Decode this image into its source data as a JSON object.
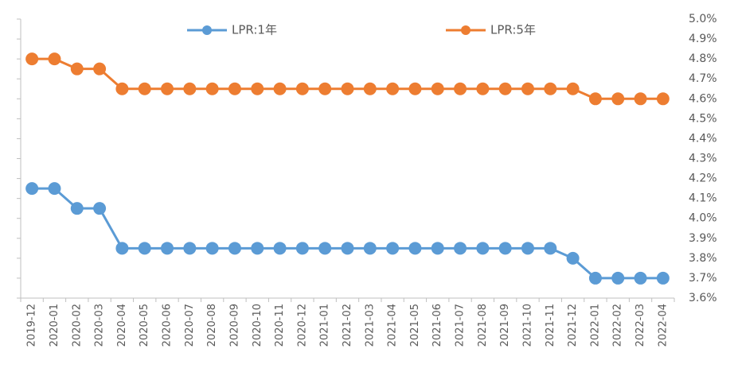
{
  "chart_data": {
    "type": "line",
    "categories": [
      "2019-12",
      "2020-01",
      "2020-02",
      "2020-03",
      "2020-04",
      "2020-05",
      "2020-06",
      "2020-07",
      "2020-08",
      "2020-09",
      "2020-10",
      "2020-11",
      "2020-12",
      "2021-01",
      "2021-02",
      "2021-03",
      "2021-04",
      "2021-05",
      "2021-06",
      "2021-07",
      "2021-08",
      "2021-09",
      "2021-10",
      "2021-11",
      "2021-12",
      "2022-01",
      "2022-02",
      "2022-03",
      "2022-04"
    ],
    "series": [
      {
        "name": "LPR:1年",
        "color": "#5b9bd5",
        "values": [
          4.15,
          4.15,
          4.05,
          4.05,
          3.85,
          3.85,
          3.85,
          3.85,
          3.85,
          3.85,
          3.85,
          3.85,
          3.85,
          3.85,
          3.85,
          3.85,
          3.85,
          3.85,
          3.85,
          3.85,
          3.85,
          3.85,
          3.85,
          3.85,
          3.8,
          3.7,
          3.7,
          3.7,
          3.7
        ]
      },
      {
        "name": "LPR:5年",
        "color": "#ed7d31",
        "values": [
          4.8,
          4.8,
          4.75,
          4.75,
          4.65,
          4.65,
          4.65,
          4.65,
          4.65,
          4.65,
          4.65,
          4.65,
          4.65,
          4.65,
          4.65,
          4.65,
          4.65,
          4.65,
          4.65,
          4.65,
          4.65,
          4.65,
          4.65,
          4.65,
          4.65,
          4.6,
          4.6,
          4.6,
          4.6
        ]
      }
    ],
    "ylim": [
      3.6,
      5.0
    ],
    "yticks": [
      {
        "value": 3.6,
        "label": "3.6%"
      },
      {
        "value": 3.7,
        "label": "3.7%"
      },
      {
        "value": 3.8,
        "label": "3.8%"
      },
      {
        "value": 3.9,
        "label": "3.9%"
      },
      {
        "value": 4.0,
        "label": "4.0%"
      },
      {
        "value": 4.1,
        "label": "4.1%"
      },
      {
        "value": 4.2,
        "label": "4.2%"
      },
      {
        "value": 4.3,
        "label": "4.3%"
      },
      {
        "value": 4.4,
        "label": "4.4%"
      },
      {
        "value": 4.5,
        "label": "4.5%"
      },
      {
        "value": 4.6,
        "label": "4.6%"
      },
      {
        "value": 4.7,
        "label": "4.7%"
      },
      {
        "value": 4.8,
        "label": "4.8%"
      },
      {
        "value": 4.9,
        "label": "4.9%"
      },
      {
        "value": 5.0,
        "label": "5.0%"
      }
    ],
    "legend": "top"
  }
}
